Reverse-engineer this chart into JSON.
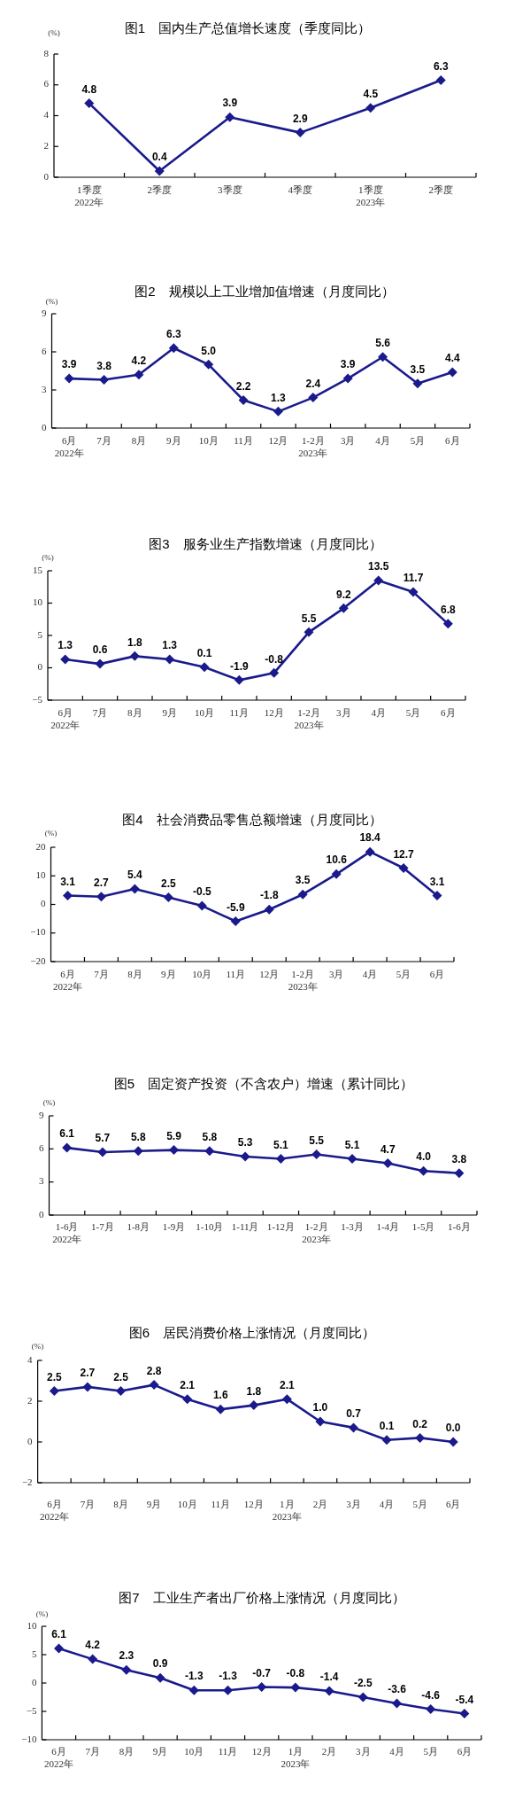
{
  "chart_data": [
    {
      "type": "line",
      "title": "图1　国内生产总值增长速度（季度同比）",
      "ylabel": "(%)",
      "categories": [
        "1季度\n2022年",
        "2季度",
        "3季度",
        "4季度",
        "1季度\n2023年",
        "2季度"
      ],
      "values": [
        4.8,
        0.4,
        3.9,
        2.9,
        4.5,
        6.3
      ],
      "value_labels": [
        "4.8",
        "0.4",
        "3.9",
        "2.9",
        "4.5",
        "6.3"
      ],
      "color": "#1a1a8c",
      "ylim": [
        0,
        8
      ],
      "yticks": [
        0,
        2,
        4,
        6,
        8
      ],
      "marker": "diamond",
      "line_style": "solid"
    },
    {
      "type": "line",
      "title": "图2　规模以上工业增加值增速（月度同比）",
      "ylabel": "(%)",
      "categories": [
        "6月\n2022年",
        "7月",
        "8月",
        "9月",
        "10月",
        "11月",
        "12月",
        "1-2月\n2023年",
        "3月",
        "4月",
        "5月",
        "6月"
      ],
      "values": [
        3.9,
        3.8,
        4.2,
        6.3,
        5.0,
        2.2,
        1.3,
        2.4,
        3.9,
        5.6,
        3.5,
        4.4
      ],
      "value_labels": [
        "3.9",
        "3.8",
        "4.2",
        "6.3",
        "5.0",
        "2.2",
        "1.3",
        "2.4",
        "3.9",
        "5.6",
        "3.5",
        "4.4"
      ],
      "color": "#1a1a8c",
      "ylim": [
        0,
        9
      ],
      "yticks": [
        0,
        3,
        6,
        9
      ],
      "marker": "diamond",
      "line_style": "solid"
    },
    {
      "type": "line",
      "title": "图3　服务业生产指数增速（月度同比）",
      "ylabel": "(%)",
      "categories": [
        "6月\n2022年",
        "7月",
        "8月",
        "9月",
        "10月",
        "11月",
        "12月",
        "1-2月\n2023年",
        "3月",
        "4月",
        "5月",
        "6月"
      ],
      "values": [
        1.3,
        0.6,
        1.8,
        1.3,
        0.1,
        -1.9,
        -0.8,
        5.5,
        9.2,
        13.5,
        11.7,
        6.8
      ],
      "value_labels": [
        "1.3",
        "0.6",
        "1.8",
        "1.3",
        "0.1",
        "-1.9",
        "-0.8",
        "5.5",
        "9.2",
        "13.5",
        "11.7",
        "6.8"
      ],
      "color": "#1a1a8c",
      "ylim": [
        -5,
        15
      ],
      "yticks": [
        {
          "value": -5,
          "label": "−5"
        },
        0,
        5,
        10,
        15
      ],
      "marker": "diamond",
      "line_style": "solid"
    },
    {
      "type": "line",
      "title": "图4　社会消费品零售总额增速（月度同比）",
      "ylabel": "(%)",
      "categories": [
        "6月\n2022年",
        "7月",
        "8月",
        "9月",
        "10月",
        "11月",
        "12月",
        "1-2月\n2023年",
        "3月",
        "4月",
        "5月",
        "6月"
      ],
      "values": [
        3.1,
        2.7,
        5.4,
        2.5,
        -0.5,
        -5.9,
        -1.8,
        3.5,
        10.6,
        18.4,
        12.7,
        3.1
      ],
      "value_labels": [
        "3.1",
        "2.7",
        "5.4",
        "2.5",
        "-0.5",
        "-5.9",
        "-1.8",
        "3.5",
        "10.6",
        "18.4",
        "12.7",
        "3.1"
      ],
      "color": "#1a1a8c",
      "ylim": [
        -20,
        20
      ],
      "yticks": [
        {
          "value": -20,
          "label": "−20"
        },
        {
          "value": -10,
          "label": "−10"
        },
        0,
        10,
        20
      ],
      "marker": "diamond",
      "line_style": "solid"
    },
    {
      "type": "line",
      "title": "图5　固定资产投资（不含农户）增速（累计同比）",
      "ylabel": "(%)",
      "categories": [
        "1-6月\n2022年",
        "1-7月",
        "1-8月",
        "1-9月",
        "1-10月",
        "1-11月",
        "1-12月",
        "1-2月\n2023年",
        "1-3月",
        "1-4月",
        "1-5月",
        "1-6月"
      ],
      "values": [
        6.1,
        5.7,
        5.8,
        5.9,
        5.8,
        5.3,
        5.1,
        5.5,
        5.1,
        4.7,
        4.0,
        3.8
      ],
      "value_labels": [
        "6.1",
        "5.7",
        "5.8",
        "5.9",
        "5.8",
        "5.3",
        "5.1",
        "5.5",
        "5.1",
        "4.7",
        "4.0",
        "3.8"
      ],
      "color": "#1a1a8c",
      "ylim": [
        0,
        9
      ],
      "yticks": [
        0,
        3,
        6,
        9
      ],
      "marker": "diamond",
      "line_style": "solid"
    },
    {
      "type": "line",
      "title": "图6　居民消费价格上涨情况（月度同比）",
      "ylabel": "(%)",
      "categories": [
        "6月\n2022年",
        "7月",
        "8月",
        "9月",
        "10月",
        "11月",
        "12月",
        "1月\n2023年",
        "2月",
        "3月",
        "4月",
        "5月",
        "6月"
      ],
      "values": [
        2.5,
        2.7,
        2.5,
        2.8,
        2.1,
        1.6,
        1.8,
        2.1,
        1.0,
        0.7,
        0.1,
        0.2,
        0.0
      ],
      "value_labels": [
        "2.5",
        "2.7",
        "2.5",
        "2.8",
        "2.1",
        "1.6",
        "1.8",
        "2.1",
        "1.0",
        "0.7",
        "0.1",
        "0.2",
        "0.0"
      ],
      "color": "#1a1a8c",
      "ylim": [
        -2,
        4
      ],
      "yticks": [
        {
          "value": -2,
          "label": "−2"
        },
        0,
        2,
        4
      ],
      "marker": "diamond",
      "line_style": "solid"
    },
    {
      "type": "line",
      "title": "图7　工业生产者出厂价格上涨情况（月度同比）",
      "ylabel": "(%)",
      "categories": [
        "6月\n2022年",
        "7月",
        "8月",
        "9月",
        "10月",
        "11月",
        "12月",
        "1月\n2023年",
        "2月",
        "3月",
        "4月",
        "5月",
        "6月"
      ],
      "values": [
        6.1,
        4.2,
        2.3,
        0.9,
        -1.3,
        -1.3,
        -0.7,
        -0.8,
        -1.4,
        -2.5,
        -3.6,
        -4.6,
        -5.4
      ],
      "value_labels": [
        "6.1",
        "4.2",
        "2.3",
        "0.9",
        "-1.3",
        "-1.3",
        "-0.7",
        "-0.8",
        "-1.4",
        "-2.5",
        "-3.6",
        "-4.6",
        "-5.4"
      ],
      "color": "#1a1a8c",
      "ylim": [
        -10,
        10
      ],
      "yticks": [
        {
          "value": -10,
          "label": "−10"
        },
        {
          "value": -5,
          "label": "−5"
        },
        0,
        5,
        10
      ],
      "marker": "diamond",
      "line_style": "solid"
    }
  ]
}
